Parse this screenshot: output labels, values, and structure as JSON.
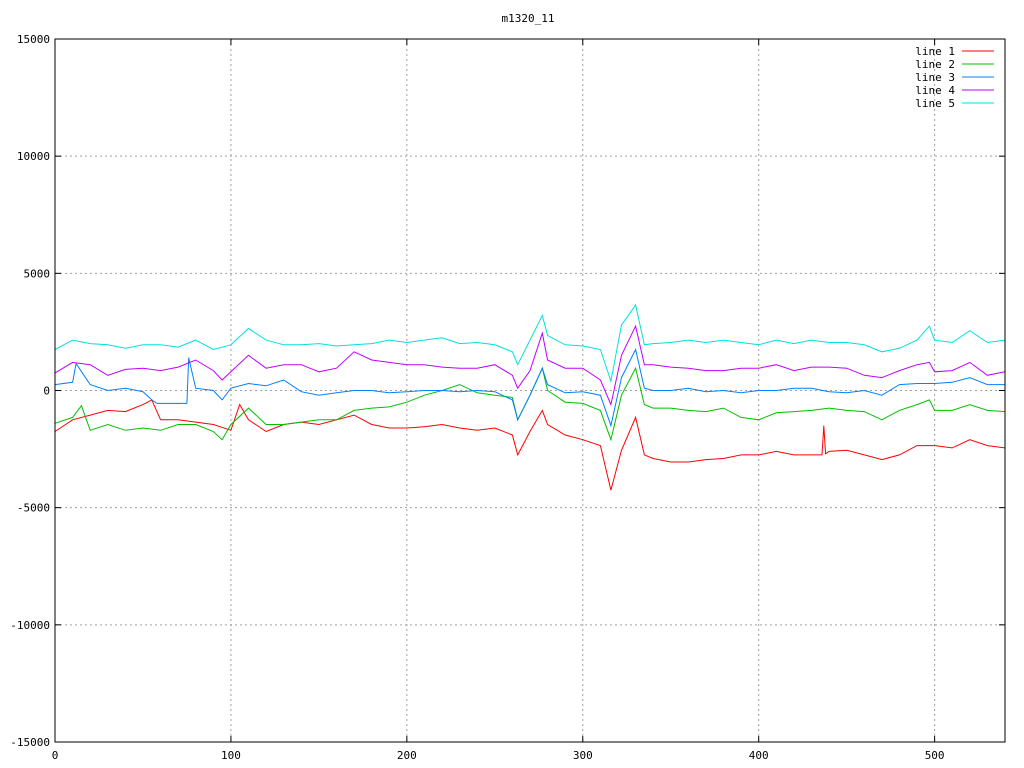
{
  "chart_data": {
    "type": "line",
    "title": "m1320_11",
    "xlabel": "",
    "ylabel": "",
    "xlim": [
      0,
      540
    ],
    "ylim": [
      -15000,
      15000
    ],
    "x_ticks": [
      0,
      100,
      200,
      300,
      400,
      500
    ],
    "y_ticks": [
      -15000,
      -10000,
      -5000,
      0,
      5000,
      10000,
      15000
    ],
    "grid": true,
    "legend_position": "top-right",
    "series": [
      {
        "name": "line 1",
        "color": "#ff0000",
        "points": [
          [
            0,
            -1750
          ],
          [
            10,
            -1250
          ],
          [
            20,
            -1050
          ],
          [
            30,
            -850
          ],
          [
            40,
            -900
          ],
          [
            50,
            -600
          ],
          [
            55,
            -400
          ],
          [
            60,
            -1250
          ],
          [
            70,
            -1250
          ],
          [
            80,
            -1350
          ],
          [
            90,
            -1450
          ],
          [
            100,
            -1700
          ],
          [
            105,
            -600
          ],
          [
            110,
            -1250
          ],
          [
            120,
            -1750
          ],
          [
            130,
            -1450
          ],
          [
            140,
            -1350
          ],
          [
            150,
            -1450
          ],
          [
            160,
            -1250
          ],
          [
            170,
            -1050
          ],
          [
            180,
            -1450
          ],
          [
            190,
            -1600
          ],
          [
            200,
            -1600
          ],
          [
            210,
            -1550
          ],
          [
            220,
            -1450
          ],
          [
            230,
            -1600
          ],
          [
            240,
            -1700
          ],
          [
            250,
            -1600
          ],
          [
            260,
            -1900
          ],
          [
            263,
            -2750
          ],
          [
            270,
            -1750
          ],
          [
            277,
            -850
          ],
          [
            280,
            -1450
          ],
          [
            290,
            -1900
          ],
          [
            300,
            -2100
          ],
          [
            310,
            -2350
          ],
          [
            316,
            -4250
          ],
          [
            322,
            -2550
          ],
          [
            330,
            -1150
          ],
          [
            335,
            -2750
          ],
          [
            340,
            -2900
          ],
          [
            350,
            -3050
          ],
          [
            360,
            -3050
          ],
          [
            370,
            -2950
          ],
          [
            380,
            -2900
          ],
          [
            390,
            -2750
          ],
          [
            400,
            -2750
          ],
          [
            410,
            -2600
          ],
          [
            420,
            -2750
          ],
          [
            430,
            -2750
          ],
          [
            436,
            -2750
          ],
          [
            437,
            -1500
          ],
          [
            438,
            -2700
          ],
          [
            440,
            -2600
          ],
          [
            450,
            -2550
          ],
          [
            460,
            -2750
          ],
          [
            470,
            -2950
          ],
          [
            480,
            -2750
          ],
          [
            490,
            -2350
          ],
          [
            500,
            -2350
          ],
          [
            510,
            -2450
          ],
          [
            520,
            -2100
          ],
          [
            530,
            -2350
          ],
          [
            540,
            -2450
          ]
        ]
      },
      {
        "name": "line 2",
        "color": "#00c000",
        "points": [
          [
            0,
            -1400
          ],
          [
            10,
            -1150
          ],
          [
            15,
            -650
          ],
          [
            20,
            -1700
          ],
          [
            30,
            -1450
          ],
          [
            40,
            -1700
          ],
          [
            50,
            -1600
          ],
          [
            60,
            -1700
          ],
          [
            70,
            -1450
          ],
          [
            80,
            -1450
          ],
          [
            90,
            -1750
          ],
          [
            95,
            -2100
          ],
          [
            100,
            -1450
          ],
          [
            110,
            -750
          ],
          [
            120,
            -1450
          ],
          [
            130,
            -1450
          ],
          [
            140,
            -1350
          ],
          [
            150,
            -1250
          ],
          [
            160,
            -1250
          ],
          [
            170,
            -850
          ],
          [
            180,
            -750
          ],
          [
            190,
            -700
          ],
          [
            200,
            -500
          ],
          [
            210,
            -200
          ],
          [
            220,
            0
          ],
          [
            230,
            250
          ],
          [
            240,
            -100
          ],
          [
            250,
            -200
          ],
          [
            260,
            -300
          ],
          [
            263,
            -1250
          ],
          [
            270,
            -200
          ],
          [
            277,
            950
          ],
          [
            280,
            0
          ],
          [
            290,
            -500
          ],
          [
            300,
            -550
          ],
          [
            310,
            -850
          ],
          [
            316,
            -2100
          ],
          [
            322,
            -200
          ],
          [
            330,
            950
          ],
          [
            335,
            -600
          ],
          [
            340,
            -750
          ],
          [
            350,
            -750
          ],
          [
            360,
            -850
          ],
          [
            370,
            -900
          ],
          [
            380,
            -750
          ],
          [
            390,
            -1150
          ],
          [
            400,
            -1250
          ],
          [
            410,
            -950
          ],
          [
            420,
            -900
          ],
          [
            430,
            -850
          ],
          [
            440,
            -750
          ],
          [
            450,
            -850
          ],
          [
            460,
            -900
          ],
          [
            470,
            -1250
          ],
          [
            480,
            -850
          ],
          [
            490,
            -600
          ],
          [
            497,
            -400
          ],
          [
            500,
            -850
          ],
          [
            510,
            -850
          ],
          [
            520,
            -600
          ],
          [
            530,
            -850
          ],
          [
            540,
            -900
          ]
        ]
      },
      {
        "name": "line 3",
        "color": "#0080ff",
        "points": [
          [
            0,
            250
          ],
          [
            10,
            350
          ],
          [
            12,
            1150
          ],
          [
            20,
            250
          ],
          [
            30,
            0
          ],
          [
            40,
            100
          ],
          [
            50,
            -50
          ],
          [
            55,
            -400
          ],
          [
            58,
            -550
          ],
          [
            75,
            -550
          ],
          [
            76,
            1400
          ],
          [
            80,
            100
          ],
          [
            90,
            0
          ],
          [
            95,
            -400
          ],
          [
            100,
            100
          ],
          [
            110,
            300
          ],
          [
            120,
            200
          ],
          [
            130,
            450
          ],
          [
            140,
            -50
          ],
          [
            150,
            -200
          ],
          [
            160,
            -100
          ],
          [
            170,
            0
          ],
          [
            180,
            0
          ],
          [
            190,
            -100
          ],
          [
            200,
            -50
          ],
          [
            210,
            0
          ],
          [
            220,
            0
          ],
          [
            230,
            -50
          ],
          [
            240,
            0
          ],
          [
            250,
            -50
          ],
          [
            260,
            -400
          ],
          [
            263,
            -1250
          ],
          [
            270,
            -200
          ],
          [
            277,
            950
          ],
          [
            280,
            250
          ],
          [
            290,
            -100
          ],
          [
            300,
            -50
          ],
          [
            310,
            -200
          ],
          [
            316,
            -1500
          ],
          [
            322,
            550
          ],
          [
            330,
            1750
          ],
          [
            335,
            100
          ],
          [
            340,
            0
          ],
          [
            350,
            0
          ],
          [
            360,
            100
          ],
          [
            370,
            -50
          ],
          [
            380,
            0
          ],
          [
            390,
            -100
          ],
          [
            400,
            0
          ],
          [
            410,
            0
          ],
          [
            420,
            100
          ],
          [
            430,
            100
          ],
          [
            440,
            -50
          ],
          [
            450,
            -100
          ],
          [
            460,
            0
          ],
          [
            470,
            -200
          ],
          [
            480,
            250
          ],
          [
            490,
            300
          ],
          [
            500,
            300
          ],
          [
            510,
            350
          ],
          [
            520,
            550
          ],
          [
            530,
            250
          ],
          [
            540,
            250
          ]
        ]
      },
      {
        "name": "line 4",
        "color": "#c000ff",
        "points": [
          [
            0,
            750
          ],
          [
            10,
            1200
          ],
          [
            20,
            1100
          ],
          [
            30,
            650
          ],
          [
            40,
            900
          ],
          [
            50,
            950
          ],
          [
            60,
            850
          ],
          [
            70,
            1000
          ],
          [
            80,
            1300
          ],
          [
            90,
            850
          ],
          [
            95,
            450
          ],
          [
            100,
            800
          ],
          [
            110,
            1500
          ],
          [
            120,
            950
          ],
          [
            130,
            1100
          ],
          [
            140,
            1100
          ],
          [
            150,
            800
          ],
          [
            160,
            950
          ],
          [
            170,
            1650
          ],
          [
            180,
            1300
          ],
          [
            190,
            1200
          ],
          [
            200,
            1100
          ],
          [
            210,
            1100
          ],
          [
            220,
            1000
          ],
          [
            230,
            950
          ],
          [
            240,
            950
          ],
          [
            250,
            1100
          ],
          [
            260,
            650
          ],
          [
            263,
            100
          ],
          [
            270,
            850
          ],
          [
            277,
            2450
          ],
          [
            280,
            1300
          ],
          [
            290,
            950
          ],
          [
            300,
            950
          ],
          [
            310,
            450
          ],
          [
            316,
            -600
          ],
          [
            322,
            1500
          ],
          [
            330,
            2750
          ],
          [
            335,
            1100
          ],
          [
            340,
            1100
          ],
          [
            350,
            1000
          ],
          [
            360,
            950
          ],
          [
            370,
            850
          ],
          [
            380,
            850
          ],
          [
            390,
            950
          ],
          [
            400,
            950
          ],
          [
            410,
            1100
          ],
          [
            420,
            850
          ],
          [
            430,
            1000
          ],
          [
            440,
            1000
          ],
          [
            450,
            950
          ],
          [
            460,
            650
          ],
          [
            470,
            550
          ],
          [
            480,
            850
          ],
          [
            490,
            1100
          ],
          [
            497,
            1200
          ],
          [
            500,
            800
          ],
          [
            510,
            850
          ],
          [
            520,
            1200
          ],
          [
            530,
            650
          ],
          [
            540,
            800
          ]
        ]
      },
      {
        "name": "line 5",
        "color": "#00e0e0",
        "points": [
          [
            0,
            1750
          ],
          [
            10,
            2150
          ],
          [
            20,
            2000
          ],
          [
            30,
            1950
          ],
          [
            40,
            1800
          ],
          [
            50,
            1950
          ],
          [
            60,
            1950
          ],
          [
            70,
            1850
          ],
          [
            80,
            2150
          ],
          [
            90,
            1750
          ],
          [
            100,
            1950
          ],
          [
            110,
            2650
          ],
          [
            120,
            2150
          ],
          [
            130,
            1950
          ],
          [
            140,
            1950
          ],
          [
            150,
            2000
          ],
          [
            160,
            1900
          ],
          [
            170,
            1950
          ],
          [
            180,
            2000
          ],
          [
            190,
            2150
          ],
          [
            200,
            2050
          ],
          [
            210,
            2150
          ],
          [
            220,
            2250
          ],
          [
            230,
            2000
          ],
          [
            240,
            2050
          ],
          [
            250,
            1950
          ],
          [
            260,
            1650
          ],
          [
            263,
            1100
          ],
          [
            270,
            2150
          ],
          [
            277,
            3200
          ],
          [
            280,
            2350
          ],
          [
            290,
            1950
          ],
          [
            300,
            1900
          ],
          [
            310,
            1750
          ],
          [
            316,
            400
          ],
          [
            322,
            2800
          ],
          [
            330,
            3650
          ],
          [
            335,
            1950
          ],
          [
            340,
            2000
          ],
          [
            350,
            2050
          ],
          [
            360,
            2150
          ],
          [
            370,
            2050
          ],
          [
            380,
            2150
          ],
          [
            390,
            2050
          ],
          [
            400,
            1950
          ],
          [
            410,
            2150
          ],
          [
            420,
            2000
          ],
          [
            430,
            2150
          ],
          [
            440,
            2050
          ],
          [
            450,
            2050
          ],
          [
            460,
            1950
          ],
          [
            470,
            1650
          ],
          [
            480,
            1800
          ],
          [
            490,
            2150
          ],
          [
            497,
            2750
          ],
          [
            500,
            2150
          ],
          [
            510,
            2050
          ],
          [
            520,
            2550
          ],
          [
            530,
            2050
          ],
          [
            540,
            2150
          ]
        ]
      }
    ]
  }
}
